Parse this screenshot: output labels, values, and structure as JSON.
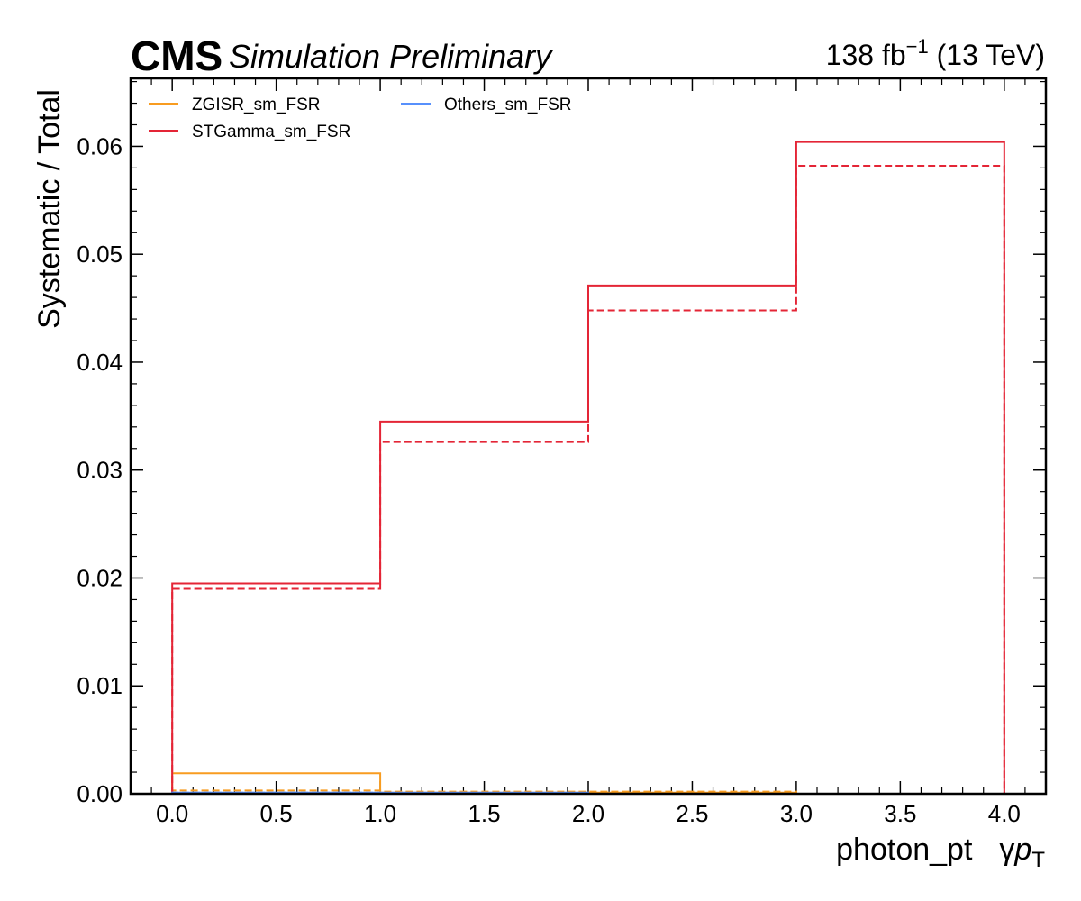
{
  "header": {
    "experiment": "CMS",
    "status": "Simulation Preliminary",
    "lumi_value": "138 fb",
    "lumi_exp": "−1",
    "lumi_energy": " (13 TeV)"
  },
  "chart_data": {
    "type": "line",
    "style": "step",
    "xlabel": "photon_pt",
    "xlabel_suffix_main": "γ",
    "xlabel_suffix_italic": "p",
    "xlabel_suffix_sub": "T",
    "ylabel": "Systematic / Total",
    "xlim": [
      -0.2,
      4.2
    ],
    "ylim": [
      0,
      0.0663
    ],
    "bin_edges": [
      0,
      1,
      2,
      3,
      4
    ],
    "x_ticks": [
      "0.0",
      "0.5",
      "1.0",
      "1.5",
      "2.0",
      "2.5",
      "3.0",
      "3.5",
      "4.0"
    ],
    "y_ticks": [
      "0.00",
      "0.01",
      "0.02",
      "0.03",
      "0.04",
      "0.05",
      "0.06"
    ],
    "legend_placement": "top-left",
    "series": [
      {
        "name": "ZGISR_sm_FSR",
        "color": "#f89c20",
        "up": [
          0.0019,
          0.0001,
          0.0001,
          0.0
        ],
        "down": [
          0.0003,
          0.0002,
          0.0002,
          0.0
        ]
      },
      {
        "name": "STGamma_sm_FSR",
        "color": "#e42536",
        "up": [
          0.0195,
          0.0345,
          0.0471,
          0.0604
        ],
        "down": [
          0.019,
          0.0326,
          0.0448,
          0.0582
        ]
      },
      {
        "name": "Others_sm_FSR",
        "color": "#5790fc",
        "up": [
          0.0001,
          0.0001,
          0.0,
          0.0
        ],
        "down": [
          0.0001,
          0.0,
          0.0,
          0.0
        ]
      }
    ]
  }
}
